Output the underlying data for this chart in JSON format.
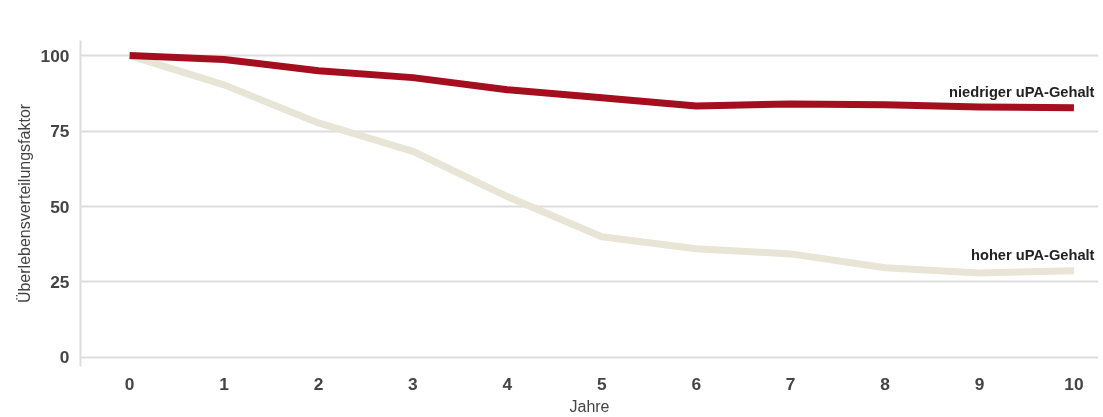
{
  "chart_data": {
    "type": "line",
    "xlabel": "Jahre",
    "ylabel": "Überlebensverteilungsfaktor",
    "x": [
      0,
      1,
      2,
      3,
      4,
      5,
      6,
      7,
      8,
      9,
      10
    ],
    "series": [
      {
        "name": "niedriger uPA-Gehalt",
        "color": "#a50e1e",
        "values": [
          100,
          98.7,
          95,
          92.7,
          88.7,
          86,
          83.3,
          84,
          83.7,
          83,
          82.7
        ]
      },
      {
        "name": "hoher uPA-Gehalt",
        "color": "#e8e4d6",
        "values": [
          100,
          90.3,
          77.7,
          68.3,
          53.3,
          40,
          36,
          34.3,
          29.7,
          28,
          28.7
        ]
      }
    ],
    "xlim": [
      -0.52,
      10.26
    ],
    "ylim": [
      -3,
      105
    ],
    "xticks": [
      0,
      1,
      2,
      3,
      4,
      5,
      6,
      7,
      8,
      9,
      10
    ],
    "yticks": [
      0,
      25,
      50,
      75,
      100
    ],
    "grid": "y",
    "legend": false,
    "marker": "none",
    "line_style": "solid"
  }
}
